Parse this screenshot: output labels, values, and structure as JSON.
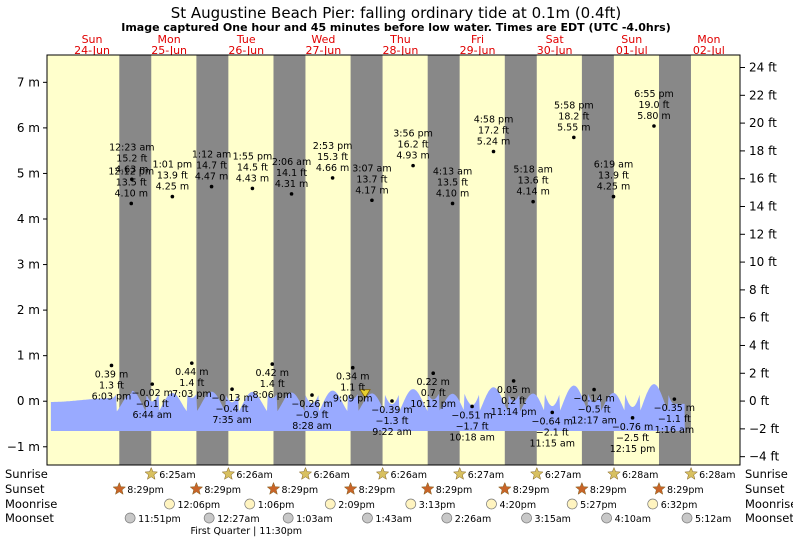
{
  "chart_data": {
    "type": "area",
    "title": "St Augustine Beach Pier: falling  ordinary tide at 0.1m (0.4ft)",
    "subtitle": "Image captured One hour and 45 minutes before low water. Times are EDT (UTC -4.0hrs)",
    "days": [
      {
        "dow": "Sun",
        "date": "24-Jun"
      },
      {
        "dow": "Mon",
        "date": "25-Jun"
      },
      {
        "dow": "Tue",
        "date": "26-Jun"
      },
      {
        "dow": "Wed",
        "date": "27-Jun"
      },
      {
        "dow": "Thu",
        "date": "28-Jun"
      },
      {
        "dow": "Fri",
        "date": "29-Jun"
      },
      {
        "dow": "Sat",
        "date": "30-Jun"
      },
      {
        "dow": "Sun",
        "date": "01-Jul"
      },
      {
        "dow": "Mon",
        "date": "02-Jul"
      }
    ],
    "y_left_ticks": [
      "7 m",
      "6 m",
      "5 m",
      "4 m",
      "3 m",
      "2 m",
      "1 m",
      "0 m",
      "−1 m"
    ],
    "y_right_ticks": [
      "24 ft",
      "22 ft",
      "20 ft",
      "18 ft",
      "16 ft",
      "14 ft",
      "12 ft",
      "10 ft",
      "8 ft",
      "6 ft",
      "4 ft",
      "2 ft",
      "0 ft",
      "−2 ft",
      "−4 ft"
    ],
    "ylim_m": [
      -1.4,
      7.6
    ],
    "ylim_ft": [
      -4.6,
      24.9
    ],
    "current_level_m": 0.1,
    "high_tides": [
      {
        "day": 0,
        "hour": 24.2,
        "time": "12:12 pm",
        "ft": "13.5 ft",
        "m": "4.10 m",
        "value": 4.1
      },
      {
        "day": 1,
        "hour": 0.38,
        "time": "12:23 am",
        "ft": "15.2 ft",
        "m": "4.63 m",
        "value": 4.63
      },
      {
        "day": 1,
        "hour": 13.0,
        "time": "1:01 pm",
        "ft": "13.9 ft",
        "m": "4.25 m",
        "value": 4.25
      },
      {
        "day": 2,
        "hour": 1.2,
        "time": "1:12 am",
        "ft": "14.7 ft",
        "m": "4.47 m",
        "value": 4.47
      },
      {
        "day": 2,
        "hour": 13.92,
        "time": "1:55 pm",
        "ft": "14.5 ft",
        "m": "4.43 m",
        "value": 4.43
      },
      {
        "day": 3,
        "hour": 2.1,
        "time": "2:06 am",
        "ft": "14.1 ft",
        "m": "4.31 m",
        "value": 4.31
      },
      {
        "day": 3,
        "hour": 14.88,
        "time": "2:53 pm",
        "ft": "15.3 ft",
        "m": "4.66 m",
        "value": 4.66
      },
      {
        "day": 4,
        "hour": 3.12,
        "time": "3:07 am",
        "ft": "13.7 ft",
        "m": "4.17 m",
        "value": 4.17
      },
      {
        "day": 4,
        "hour": 15.93,
        "time": "3:56 pm",
        "ft": "16.2 ft",
        "m": "4.93 m",
        "value": 4.93
      },
      {
        "day": 5,
        "hour": 4.22,
        "time": "4:13 am",
        "ft": "13.5 ft",
        "m": "4.10 m",
        "value": 4.1
      },
      {
        "day": 5,
        "hour": 16.97,
        "time": "4:58 pm",
        "ft": "17.2 ft",
        "m": "5.24 m",
        "value": 5.24
      },
      {
        "day": 6,
        "hour": 5.3,
        "time": "5:18 am",
        "ft": "13.6 ft",
        "m": "4.14 m",
        "value": 4.14
      },
      {
        "day": 6,
        "hour": 17.97,
        "time": "5:58 pm",
        "ft": "18.2 ft",
        "m": "5.55 m",
        "value": 5.55
      },
      {
        "day": 7,
        "hour": 6.32,
        "time": "6:19 am",
        "ft": "13.9 ft",
        "m": "4.25 m",
        "value": 4.25
      },
      {
        "day": 7,
        "hour": 18.92,
        "time": "6:55 pm",
        "ft": "19.0 ft",
        "m": "5.80 m",
        "value": 5.8
      }
    ],
    "low_tides": [
      {
        "day": 0,
        "hour": 18.05,
        "time": "6:03 pm",
        "ft": "1.3 ft",
        "m": "0.39 m",
        "value": 0.39
      },
      {
        "day": 1,
        "hour": 6.73,
        "time": "6:44 am",
        "ft": "−0.1 ft",
        "m": "−0.02 m",
        "value": -0.02
      },
      {
        "day": 1,
        "hour": 19.05,
        "time": "7:03 pm",
        "ft": "1.4 ft",
        "m": "0.44 m",
        "value": 0.44
      },
      {
        "day": 2,
        "hour": 7.58,
        "time": "7:35 am",
        "ft": "−0.4 ft",
        "m": "−0.13 m",
        "value": -0.13
      },
      {
        "day": 2,
        "hour": 20.1,
        "time": "8:06 pm",
        "ft": "1.4 ft",
        "m": "0.42 m",
        "value": 0.42
      },
      {
        "day": 3,
        "hour": 8.47,
        "time": "8:28 am",
        "ft": "−0.9 ft",
        "m": "−0.26 m",
        "value": -0.26
      },
      {
        "day": 3,
        "hour": 21.15,
        "time": "9:09 pm",
        "ft": "1.1 ft",
        "m": "0.34 m",
        "value": 0.34
      },
      {
        "day": 4,
        "hour": 9.37,
        "time": "9:22 am",
        "ft": "−1.3 ft",
        "m": "−0.39 m",
        "value": -0.39
      },
      {
        "day": 4,
        "hour": 22.2,
        "time": "10:12 pm",
        "ft": "0.7 ft",
        "m": "0.22 m",
        "value": 0.22
      },
      {
        "day": 5,
        "hour": 10.3,
        "time": "10:18 am",
        "ft": "−1.7 ft",
        "m": "−0.51 m",
        "value": -0.51
      },
      {
        "day": 5,
        "hour": 23.23,
        "time": "11:14 pm",
        "ft": "0.2 ft",
        "m": "0.05 m",
        "value": 0.05
      },
      {
        "day": 6,
        "hour": 11.25,
        "time": "11:15 am",
        "ft": "−2.1 ft",
        "m": "−0.64 m",
        "value": -0.64
      },
      {
        "day": 7,
        "hour": 0.28,
        "time": "12:17 am",
        "ft": "−0.5 ft",
        "m": "−0.14 m",
        "value": -0.14
      },
      {
        "day": 7,
        "hour": 12.25,
        "time": "12:15 pm",
        "ft": "−2.5 ft",
        "m": "−0.76 m",
        "value": -0.76
      },
      {
        "day": 8,
        "hour": 1.27,
        "time": "1:16 am",
        "ft": "−1.1 ft",
        "m": "−0.35 m",
        "value": -0.35
      }
    ],
    "events": {
      "labels": {
        "sunrise": "Sunrise",
        "sunset": "Sunset",
        "moonrise": "Moonrise",
        "moonset": "Moonset"
      },
      "sunrise": [
        {
          "day": 1,
          "hour": 6.42,
          "time": "6:25am"
        },
        {
          "day": 2,
          "hour": 6.43,
          "time": "6:26am"
        },
        {
          "day": 3,
          "hour": 6.43,
          "time": "6:26am"
        },
        {
          "day": 4,
          "hour": 6.43,
          "time": "6:26am"
        },
        {
          "day": 5,
          "hour": 6.45,
          "time": "6:27am"
        },
        {
          "day": 6,
          "hour": 6.45,
          "time": "6:27am"
        },
        {
          "day": 7,
          "hour": 6.47,
          "time": "6:28am"
        },
        {
          "day": 8,
          "hour": 6.47,
          "time": "6:28am"
        }
      ],
      "sunset": [
        {
          "day": 0,
          "hour": 20.48,
          "time": "8:29pm"
        },
        {
          "day": 1,
          "hour": 20.48,
          "time": "8:29pm"
        },
        {
          "day": 2,
          "hour": 20.48,
          "time": "8:29pm"
        },
        {
          "day": 3,
          "hour": 20.48,
          "time": "8:29pm"
        },
        {
          "day": 4,
          "hour": 20.48,
          "time": "8:29pm"
        },
        {
          "day": 5,
          "hour": 20.48,
          "time": "8:29pm"
        },
        {
          "day": 6,
          "hour": 20.48,
          "time": "8:29pm"
        },
        {
          "day": 7,
          "hour": 20.48,
          "time": "8:29pm"
        }
      ],
      "moonrise": [
        {
          "day": 1,
          "hour": 12.1,
          "time": "12:06pm"
        },
        {
          "day": 2,
          "hour": 13.1,
          "time": "1:06pm"
        },
        {
          "day": 3,
          "hour": 14.15,
          "time": "2:09pm"
        },
        {
          "day": 4,
          "hour": 15.22,
          "time": "3:13pm"
        },
        {
          "day": 5,
          "hour": 16.33,
          "time": "4:20pm"
        },
        {
          "day": 6,
          "hour": 17.45,
          "time": "5:27pm"
        },
        {
          "day": 7,
          "hour": 18.53,
          "time": "6:32pm"
        }
      ],
      "moonset": [
        {
          "day": 0,
          "hour": 23.85,
          "time": "11:51pm"
        },
        {
          "day": 1,
          "hour": 24.45,
          "time": "12:27am"
        },
        {
          "day": 2,
          "hour": 25.05,
          "time": "1:03am"
        },
        {
          "day": 3,
          "hour": 25.72,
          "time": "1:43am"
        },
        {
          "day": 4,
          "hour": 26.43,
          "time": "2:26am"
        },
        {
          "day": 5,
          "hour": 27.25,
          "time": "3:15am"
        },
        {
          "day": 6,
          "hour": 28.17,
          "time": "4:10am"
        },
        {
          "day": 7,
          "hour": 29.2,
          "time": "5:12am"
        }
      ],
      "moon_phase_note": "First Quarter | 11:30pm"
    },
    "colors": {
      "day_bg": "#ffffcc",
      "night_bg": "#888888",
      "water": "#99aaff",
      "day_text": "#e00000",
      "sun_icon": "#d8c060",
      "sunset_icon": "#c86428",
      "moonrise_icon": "#fff4c0",
      "moonset_icon": "#c8c8c8",
      "marker": "#e8d030"
    }
  }
}
